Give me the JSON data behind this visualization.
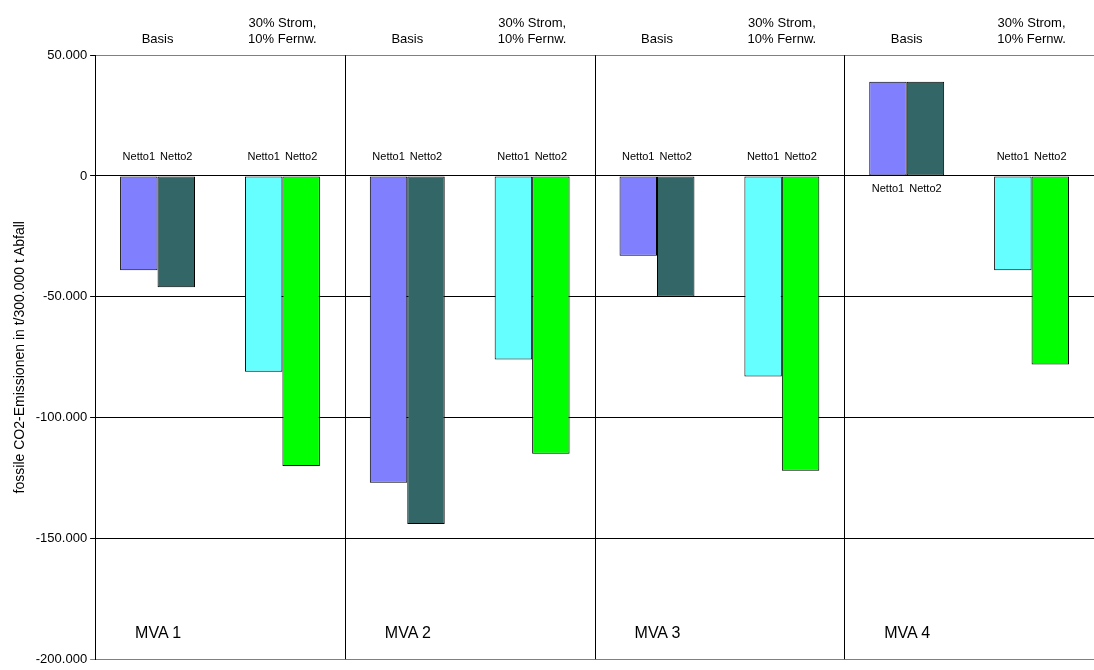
{
  "chart_data": {
    "type": "bar",
    "ylabel": "fossile CO2-Emissionen in t/300.000 t Abfall",
    "categories": [
      "Basis",
      "30% Strom, 10% Fernw.",
      "Basis",
      "30% Strom, 10% Fernw.",
      "Basis",
      "30% Strom, 10% Fernw.",
      "Basis",
      "30% Strom, 10% Fernw."
    ],
    "series": [
      {
        "name": "Netto1",
        "colors": [
          "#8080ff",
          "#66ffff",
          "#8080ff",
          "#66ffff",
          "#8080ff",
          "#66ffff",
          "#8080ff",
          "#66ffff"
        ],
        "values": [
          -39000,
          -81000,
          -127000,
          -76000,
          -33000,
          -83000,
          39000,
          -39000
        ]
      },
      {
        "name": "Netto2",
        "colors": [
          "#336666",
          "#00ff00",
          "#336666",
          "#00ff00",
          "#336666",
          "#00ff00",
          "#336666",
          "#00ff00"
        ],
        "values": [
          -46000,
          -120000,
          -144000,
          -115000,
          -50000,
          -122000,
          39000,
          -78000
        ]
      }
    ],
    "ylim": [
      -200000,
      50000
    ],
    "yticks": [
      {
        "value": -200000,
        "label": "-200.000"
      },
      {
        "value": -150000,
        "label": "-150.000"
      },
      {
        "value": -100000,
        "label": "-100.000"
      },
      {
        "value": -50000,
        "label": "-50.000"
      },
      0,
      {
        "value": 50000,
        "label": "50.000"
      }
    ],
    "grid": "y",
    "legend": false,
    "annotations": [
      "MVA 1",
      "MVA 2",
      "MVA 3",
      "MVA 4"
    ]
  }
}
